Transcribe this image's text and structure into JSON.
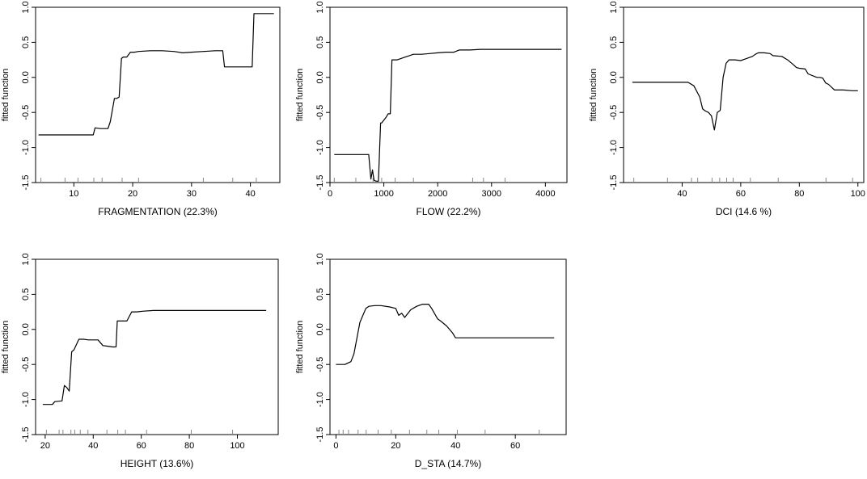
{
  "chart_data": [
    {
      "type": "line",
      "title": "",
      "xlabel": "FRAGMENTATION  (22.3%)",
      "ylabel": "fitted function",
      "xlim": [
        3.5,
        45
      ],
      "ylim": [
        -1.5,
        1.0
      ],
      "xticks": [
        10,
        20,
        30,
        40
      ],
      "yticks": [
        -1.5,
        -1.0,
        -0.5,
        0.0,
        0.5,
        1.0
      ],
      "yticklabels": [
        "-1.5",
        "-1.0",
        "-0.5",
        "0.0",
        "0.5",
        "1.0"
      ],
      "rug": [
        4.4,
        8.5,
        10.7,
        13.4,
        14.8,
        18.2,
        21.0,
        32.0,
        37.0,
        41.0
      ],
      "x": [
        4,
        13.3,
        13.6,
        14.5,
        15.8,
        16.2,
        16.9,
        17.3,
        17.7,
        18.1,
        18.4,
        19.0,
        19.6,
        20.3,
        21.0,
        23.0,
        25.0,
        27.0,
        28.5,
        30.0,
        32.0,
        34.0,
        35.3,
        35.6,
        40.3,
        40.6,
        44.0
      ],
      "y": [
        -0.82,
        -0.82,
        -0.72,
        -0.73,
        -0.73,
        -0.63,
        -0.3,
        -0.3,
        -0.28,
        0.27,
        0.29,
        0.29,
        0.36,
        0.36,
        0.37,
        0.38,
        0.38,
        0.37,
        0.35,
        0.36,
        0.37,
        0.38,
        0.38,
        0.15,
        0.15,
        0.91,
        0.91
      ]
    },
    {
      "type": "line",
      "title": "",
      "xlabel": "FLOW  (22.2%)",
      "ylabel": "fitted function",
      "xlim": [
        0,
        4400
      ],
      "ylim": [
        -1.5,
        1.0
      ],
      "xticks": [
        0,
        1000,
        2000,
        3000,
        4000
      ],
      "yticks": [
        -1.5,
        -1.0,
        -0.5,
        0.0,
        0.5,
        1.0
      ],
      "yticklabels": [
        "-1.5",
        "-1.0",
        "-0.5",
        "0.0",
        "0.5",
        "1.0"
      ],
      "rug": [
        80,
        480,
        800,
        960,
        1210,
        1550,
        2650,
        2850,
        3250
      ],
      "x": [
        80,
        720,
        760,
        790,
        800,
        820,
        860,
        900,
        940,
        960,
        1040,
        1080,
        1120,
        1150,
        1180,
        1250,
        1400,
        1550,
        1700,
        1850,
        2000,
        2150,
        2300,
        2400,
        2600,
        2800,
        3500,
        4300
      ],
      "y": [
        -1.1,
        -1.1,
        -1.45,
        -1.32,
        -1.38,
        -1.47,
        -1.48,
        -1.48,
        -0.65,
        -0.65,
        -0.57,
        -0.52,
        -0.52,
        0.25,
        0.25,
        0.25,
        0.29,
        0.33,
        0.33,
        0.34,
        0.35,
        0.36,
        0.36,
        0.39,
        0.39,
        0.4,
        0.4,
        0.4
      ]
    },
    {
      "type": "line",
      "title": "",
      "xlabel": "DCI  (14.6 %)",
      "ylabel": "fitted function",
      "xlim": [
        20,
        102
      ],
      "ylim": [
        -1.5,
        1.0
      ],
      "xticks": [
        40,
        60,
        80,
        100
      ],
      "yticks": [
        -1.5,
        -1.0,
        -0.5,
        0.0,
        0.5,
        1.0
      ],
      "yticklabels": [
        "-1.5",
        "-1.0",
        "-0.5",
        "0.0",
        "0.5",
        "1.0"
      ],
      "rug": [
        23.5,
        35.0,
        43.2,
        45.3,
        50.2,
        52.8,
        55.2,
        57.4,
        63.3,
        72.8,
        89.1,
        98.2
      ],
      "x": [
        23,
        42,
        44,
        46,
        47,
        48,
        49,
        50,
        51,
        52,
        53,
        54,
        55,
        56,
        57,
        58,
        60,
        62,
        64,
        65,
        66,
        68,
        70,
        71,
        74,
        76,
        78,
        79,
        80,
        82,
        83,
        86,
        87,
        88,
        89,
        90,
        92,
        95,
        98,
        100
      ],
      "y": [
        -0.07,
        -0.07,
        -0.12,
        -0.28,
        -0.45,
        -0.48,
        -0.5,
        -0.55,
        -0.75,
        -0.5,
        -0.47,
        0.0,
        0.2,
        0.25,
        0.25,
        0.25,
        0.24,
        0.27,
        0.3,
        0.33,
        0.35,
        0.35,
        0.34,
        0.31,
        0.3,
        0.25,
        0.18,
        0.14,
        0.13,
        0.12,
        0.05,
        0.0,
        0.0,
        -0.01,
        -0.08,
        -0.1,
        -0.18,
        -0.18,
        -0.19,
        -0.19
      ]
    },
    {
      "type": "line",
      "title": "",
      "xlabel": "HEIGHT  (13.6%)",
      "ylabel": "fitted function",
      "xlim": [
        16,
        117
      ],
      "ylim": [
        -1.5,
        1.0
      ],
      "xticks": [
        20,
        40,
        60,
        80,
        100
      ],
      "yticks": [
        -1.5,
        -1.0,
        -0.5,
        0.0,
        0.5,
        1.0
      ],
      "yticklabels": [
        "-1.5",
        "-1.0",
        "-0.5",
        "0.0",
        "0.5",
        "1.0"
      ],
      "rug": [
        20.5,
        25.8,
        27.4,
        30.7,
        32.3,
        34.6,
        37.8,
        45.7,
        50.2,
        53.4,
        62.2,
        80.8,
        98.0
      ],
      "x": [
        19,
        23,
        24,
        27,
        28,
        29,
        30,
        31,
        32,
        34,
        36,
        38,
        40,
        42,
        44,
        46,
        48,
        49.5,
        50,
        52,
        54,
        56,
        58,
        61,
        65,
        75,
        85,
        100,
        112
      ],
      "y": [
        -1.07,
        -1.07,
        -1.03,
        -1.02,
        -0.8,
        -0.83,
        -0.88,
        -0.32,
        -0.29,
        -0.14,
        -0.14,
        -0.15,
        -0.15,
        -0.15,
        -0.23,
        -0.24,
        -0.25,
        -0.25,
        0.12,
        0.12,
        0.12,
        0.25,
        0.25,
        0.26,
        0.27,
        0.27,
        0.27,
        0.27,
        0.27
      ]
    },
    {
      "type": "line",
      "title": "",
      "xlabel": "D_STA  (14.7%)",
      "ylabel": "fitted function",
      "xlim": [
        -2,
        77
      ],
      "ylim": [
        -1.5,
        1.0
      ],
      "xticks": [
        0,
        20,
        40,
        60
      ],
      "yticks": [
        -1.5,
        -1.0,
        -0.5,
        0.0,
        0.5,
        1.0
      ],
      "yticklabels": [
        "-1.5",
        "-1.0",
        "-0.5",
        "0.0",
        "0.5",
        "1.0"
      ],
      "rug": [
        1.0,
        2.4,
        4.2,
        7.4,
        10.1,
        14.1,
        18.5,
        24.6,
        30.4,
        34.4,
        40.6,
        49.9,
        68.0
      ],
      "x": [
        0,
        3,
        5,
        6,
        8,
        9,
        10,
        11,
        13,
        15,
        18,
        20,
        21,
        22,
        23,
        25,
        27,
        29,
        31,
        32,
        34,
        35,
        37,
        39,
        40,
        41,
        45,
        50,
        60,
        73
      ],
      "y": [
        -0.5,
        -0.5,
        -0.46,
        -0.35,
        0.1,
        0.2,
        0.3,
        0.33,
        0.34,
        0.34,
        0.32,
        0.3,
        0.2,
        0.23,
        0.17,
        0.28,
        0.33,
        0.36,
        0.36,
        0.3,
        0.15,
        0.12,
        0.05,
        -0.05,
        -0.12,
        -0.12,
        -0.12,
        -0.12,
        -0.12,
        -0.12
      ]
    }
  ]
}
